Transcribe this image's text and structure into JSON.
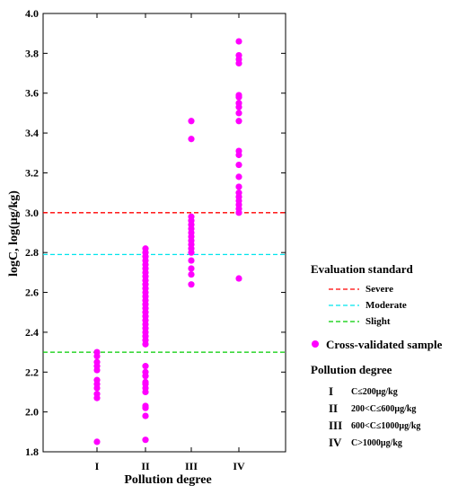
{
  "chart_data": {
    "type": "scatter",
    "xlabel": "Pollution degree",
    "ylabel": "logC, log(μg/kg)",
    "ylim": [
      1.8,
      4.0
    ],
    "yticks": [
      "1.8",
      "2.0",
      "2.2",
      "2.4",
      "2.6",
      "2.8",
      "3.0",
      "3.2",
      "3.4",
      "3.6",
      "3.8",
      "4.0"
    ],
    "categories": [
      "I",
      "II",
      "III",
      "IV"
    ],
    "grid": false,
    "series": [
      {
        "name": "Cross-validated sample",
        "color": "#ff00ff",
        "points": [
          {
            "x": "I",
            "y": [
              1.85,
              2.07,
              2.09,
              2.12,
              2.14,
              2.16,
              2.21,
              2.23,
              2.25,
              2.28,
              2.3
            ]
          },
          {
            "x": "II",
            "y": [
              1.86,
              1.98,
              2.02,
              2.03,
              2.1,
              2.12,
              2.14,
              2.15,
              2.18,
              2.2,
              2.23,
              2.34,
              2.36,
              2.38,
              2.4,
              2.42,
              2.44,
              2.46,
              2.48,
              2.5,
              2.52,
              2.54,
              2.56,
              2.58,
              2.6,
              2.62,
              2.64,
              2.66,
              2.68,
              2.7,
              2.72,
              2.74,
              2.76,
              2.78,
              2.8,
              2.82
            ]
          },
          {
            "x": "III",
            "y": [
              2.64,
              2.69,
              2.72,
              2.76,
              2.8,
              2.82,
              2.84,
              2.86,
              2.88,
              2.9,
              2.92,
              2.94,
              2.96,
              2.98,
              3.37,
              3.46
            ]
          },
          {
            "x": "IV",
            "y": [
              2.67,
              3.0,
              3.02,
              3.04,
              3.06,
              3.08,
              3.1,
              3.13,
              3.18,
              3.24,
              3.29,
              3.31,
              3.46,
              3.5,
              3.53,
              3.55,
              3.58,
              3.59,
              3.75,
              3.77,
              3.79,
              3.86
            ]
          }
        ]
      }
    ],
    "thresholds": [
      {
        "name": "Severe",
        "y": 3.0,
        "color": "#ff0000"
      },
      {
        "name": "Moderate",
        "y": 2.79,
        "color": "#00e5ee"
      },
      {
        "name": "Slight",
        "y": 2.3,
        "color": "#00cc00"
      }
    ],
    "legend": {
      "placement": "right",
      "evaluation_title": "Evaluation standard",
      "sample_label": "Cross-validated sample",
      "degree_title": "Pollution degree",
      "degrees": [
        {
          "num": "I",
          "def": "C≤200μg/kg"
        },
        {
          "num": "II",
          "def": "200<C≤600μg/kg"
        },
        {
          "num": "III",
          "def": "600<C≤1000μg/kg"
        },
        {
          "num": "IV",
          "def": "C>1000μg/kg"
        }
      ]
    }
  }
}
